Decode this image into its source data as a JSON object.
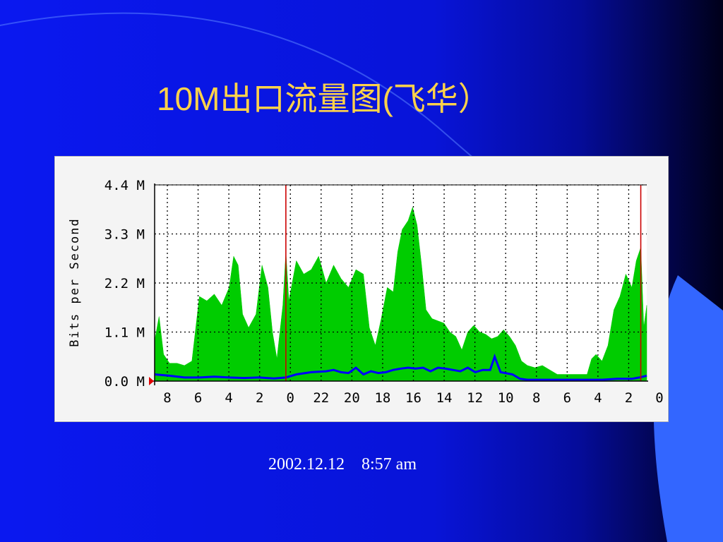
{
  "slide": {
    "title": "10M出口流量图(飞华）",
    "timestamp": "2002.12.12    8:57 am"
  },
  "colors": {
    "background": "#0A18F0",
    "title": "#FFD24A",
    "area_series": "#00CC00",
    "line_series": "#0000FF",
    "day_marker": "#CC0000"
  },
  "chart_data": {
    "type": "area",
    "ylabel": "Bits per Second",
    "ylim": [
      0,
      4.4
    ],
    "y_ticks": [
      "0.0 M",
      "1.1 M",
      "2.2 M",
      "3.3 M",
      "4.4 M"
    ],
    "y_tick_values": [
      0,
      1.1,
      2.2,
      3.3,
      4.4
    ],
    "x_ticks": [
      "8",
      "6",
      "4",
      "2",
      "0",
      "22",
      "20",
      "18",
      "16",
      "14",
      "12",
      "10",
      "8",
      "6",
      "4",
      "2",
      "0"
    ],
    "x_range_hours": [
      0,
      33
    ],
    "day_boundaries_hours": [
      8.8,
      32.6
    ],
    "grid": true,
    "series": [
      {
        "style": "area",
        "color": "#00CC00",
        "points": [
          [
            0.0,
            0.9
          ],
          [
            0.3,
            1.45
          ],
          [
            0.6,
            0.6
          ],
          [
            1.0,
            0.4
          ],
          [
            1.5,
            0.4
          ],
          [
            2.0,
            0.35
          ],
          [
            2.5,
            0.45
          ],
          [
            3.0,
            1.9
          ],
          [
            3.5,
            1.8
          ],
          [
            4.0,
            1.95
          ],
          [
            4.5,
            1.7
          ],
          [
            5.0,
            2.1
          ],
          [
            5.3,
            2.8
          ],
          [
            5.6,
            2.6
          ],
          [
            5.9,
            1.5
          ],
          [
            6.3,
            1.2
          ],
          [
            6.8,
            1.5
          ],
          [
            7.2,
            2.6
          ],
          [
            7.6,
            2.1
          ],
          [
            7.9,
            1.1
          ],
          [
            8.2,
            0.5
          ],
          [
            8.6,
            1.7
          ],
          [
            8.8,
            2.9
          ],
          [
            9.0,
            1.8
          ],
          [
            9.5,
            2.7
          ],
          [
            10.0,
            2.4
          ],
          [
            10.5,
            2.5
          ],
          [
            11.0,
            2.8
          ],
          [
            11.5,
            2.2
          ],
          [
            12.0,
            2.6
          ],
          [
            12.5,
            2.3
          ],
          [
            13.0,
            2.1
          ],
          [
            13.5,
            2.5
          ],
          [
            14.0,
            2.4
          ],
          [
            14.4,
            1.2
          ],
          [
            14.8,
            0.8
          ],
          [
            15.2,
            1.4
          ],
          [
            15.6,
            2.1
          ],
          [
            16.0,
            2.0
          ],
          [
            16.3,
            2.9
          ],
          [
            16.6,
            3.4
          ],
          [
            17.0,
            3.6
          ],
          [
            17.3,
            3.9
          ],
          [
            17.6,
            3.5
          ],
          [
            17.9,
            2.6
          ],
          [
            18.2,
            1.6
          ],
          [
            18.6,
            1.4
          ],
          [
            19.0,
            1.35
          ],
          [
            19.4,
            1.3
          ],
          [
            19.8,
            1.1
          ],
          [
            20.2,
            1.0
          ],
          [
            20.6,
            0.7
          ],
          [
            21.0,
            1.1
          ],
          [
            21.4,
            1.25
          ],
          [
            21.8,
            1.1
          ],
          [
            22.2,
            1.05
          ],
          [
            22.6,
            0.95
          ],
          [
            23.0,
            1.0
          ],
          [
            23.4,
            1.15
          ],
          [
            23.8,
            1.0
          ],
          [
            24.2,
            0.8
          ],
          [
            24.6,
            0.45
          ],
          [
            25.0,
            0.35
          ],
          [
            25.5,
            0.3
          ],
          [
            26.0,
            0.35
          ],
          [
            26.5,
            0.25
          ],
          [
            27.0,
            0.15
          ],
          [
            27.5,
            0.15
          ],
          [
            28.0,
            0.15
          ],
          [
            28.5,
            0.15
          ],
          [
            29.0,
            0.15
          ],
          [
            29.3,
            0.5
          ],
          [
            29.6,
            0.6
          ],
          [
            30.0,
            0.45
          ],
          [
            30.4,
            0.8
          ],
          [
            30.8,
            1.6
          ],
          [
            31.2,
            1.9
          ],
          [
            31.6,
            2.4
          ],
          [
            32.0,
            2.1
          ],
          [
            32.3,
            2.7
          ],
          [
            32.6,
            3.0
          ],
          [
            32.8,
            1.2
          ],
          [
            33.0,
            1.7
          ]
        ]
      },
      {
        "style": "line",
        "color": "#0000FF",
        "points": [
          [
            0.0,
            0.15
          ],
          [
            1.0,
            0.12
          ],
          [
            2.0,
            0.08
          ],
          [
            3.0,
            0.08
          ],
          [
            4.0,
            0.1
          ],
          [
            5.0,
            0.08
          ],
          [
            6.0,
            0.07
          ],
          [
            7.0,
            0.08
          ],
          [
            8.0,
            0.06
          ],
          [
            8.8,
            0.08
          ],
          [
            9.5,
            0.15
          ],
          [
            10.5,
            0.2
          ],
          [
            11.5,
            0.22
          ],
          [
            12.0,
            0.25
          ],
          [
            12.5,
            0.2
          ],
          [
            13.0,
            0.18
          ],
          [
            13.5,
            0.3
          ],
          [
            14.0,
            0.15
          ],
          [
            14.5,
            0.22
          ],
          [
            15.0,
            0.18
          ],
          [
            15.5,
            0.2
          ],
          [
            16.0,
            0.25
          ],
          [
            16.5,
            0.28
          ],
          [
            17.0,
            0.3
          ],
          [
            17.5,
            0.28
          ],
          [
            18.0,
            0.3
          ],
          [
            18.5,
            0.22
          ],
          [
            19.0,
            0.3
          ],
          [
            19.5,
            0.28
          ],
          [
            20.0,
            0.25
          ],
          [
            20.5,
            0.22
          ],
          [
            21.0,
            0.3
          ],
          [
            21.5,
            0.2
          ],
          [
            22.0,
            0.25
          ],
          [
            22.5,
            0.25
          ],
          [
            22.8,
            0.55
          ],
          [
            23.2,
            0.2
          ],
          [
            24.0,
            0.15
          ],
          [
            24.5,
            0.05
          ],
          [
            25.0,
            0.03
          ],
          [
            26.0,
            0.03
          ],
          [
            27.0,
            0.03
          ],
          [
            28.0,
            0.03
          ],
          [
            29.0,
            0.03
          ],
          [
            30.0,
            0.03
          ],
          [
            31.0,
            0.05
          ],
          [
            32.0,
            0.05
          ],
          [
            32.5,
            0.08
          ],
          [
            33.0,
            0.12
          ]
        ]
      }
    ]
  }
}
